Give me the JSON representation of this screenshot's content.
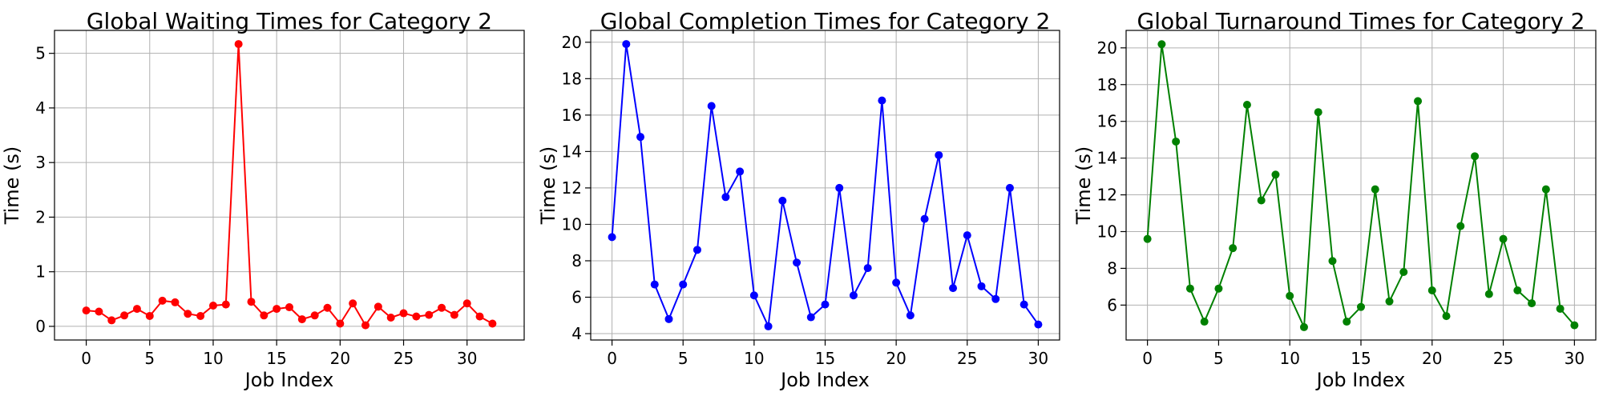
{
  "chart_data": [
    {
      "type": "line",
      "title": "Global Waiting Times for Category 2",
      "xlabel": "Job Index",
      "ylabel": "Time (s)",
      "color": "#ff0000",
      "grid": true,
      "xlim": [
        -2.5,
        34.5
      ],
      "ylim": [
        -0.25,
        5.42
      ],
      "xticks": [
        0,
        5,
        10,
        15,
        20,
        25,
        30
      ],
      "yticks": [
        0,
        1,
        2,
        3,
        4,
        5
      ],
      "series": [
        {
          "x": [
            0,
            1,
            2,
            3,
            4,
            5,
            6,
            7,
            8,
            9,
            10,
            11,
            12,
            13,
            14,
            15,
            16,
            17,
            18,
            19,
            20,
            21,
            22,
            23,
            24,
            25,
            26,
            27,
            28,
            29,
            30,
            31,
            32
          ],
          "y": [
            0.29,
            0.27,
            0.11,
            0.2,
            0.32,
            0.19,
            0.47,
            0.44,
            0.23,
            0.19,
            0.38,
            0.4,
            5.17,
            0.45,
            0.2,
            0.32,
            0.35,
            0.13,
            0.2,
            0.34,
            0.05,
            0.42,
            0.02,
            0.36,
            0.16,
            0.24,
            0.18,
            0.21,
            0.34,
            0.21,
            0.42,
            0.18,
            0.05
          ]
        }
      ]
    },
    {
      "type": "line",
      "title": "Global Completion Times for Category 2",
      "xlabel": "Job Index",
      "ylabel": "Time (s)",
      "color": "#0000ff",
      "grid": true,
      "xlim": [
        -1.5,
        31.5
      ],
      "ylim": [
        3.65,
        20.65
      ],
      "xticks": [
        0,
        5,
        10,
        15,
        20,
        25,
        30
      ],
      "yticks": [
        4,
        6,
        8,
        10,
        12,
        14,
        16,
        18,
        20
      ],
      "series": [
        {
          "x": [
            0,
            1,
            2,
            3,
            4,
            5,
            6,
            7,
            8,
            9,
            10,
            11,
            12,
            13,
            14,
            15,
            16,
            17,
            18,
            19,
            20,
            21,
            22,
            23,
            24,
            25,
            26,
            27,
            28,
            29,
            30
          ],
          "y": [
            9.3,
            19.9,
            14.8,
            6.7,
            4.8,
            6.7,
            8.6,
            16.5,
            11.5,
            12.9,
            6.1,
            4.4,
            11.3,
            7.9,
            4.9,
            5.6,
            12.0,
            6.1,
            7.6,
            16.8,
            6.8,
            5.0,
            10.3,
            13.8,
            6.5,
            9.4,
            6.6,
            5.9,
            12.0,
            5.6,
            4.5
          ]
        }
      ]
    },
    {
      "type": "line",
      "title": "Global Turnaround Times for Category 2",
      "xlabel": "Job Index",
      "ylabel": "Time (s)",
      "color": "#008000",
      "grid": true,
      "xlim": [
        -1.5,
        31.5
      ],
      "ylim": [
        4.1,
        20.95
      ],
      "xticks": [
        0,
        5,
        10,
        15,
        20,
        25,
        30
      ],
      "yticks": [
        6,
        8,
        10,
        12,
        14,
        16,
        18,
        20
      ],
      "series": [
        {
          "x": [
            0,
            1,
            2,
            3,
            4,
            5,
            6,
            7,
            8,
            9,
            10,
            11,
            12,
            13,
            14,
            15,
            16,
            17,
            18,
            19,
            20,
            21,
            22,
            23,
            24,
            25,
            26,
            27,
            28,
            29,
            30
          ],
          "y": [
            9.6,
            20.2,
            14.9,
            6.9,
            5.1,
            6.9,
            9.1,
            16.9,
            11.7,
            13.1,
            6.5,
            4.8,
            16.5,
            8.4,
            5.1,
            5.9,
            12.3,
            6.2,
            7.8,
            17.1,
            6.8,
            5.4,
            10.3,
            14.1,
            6.6,
            9.6,
            6.8,
            6.1,
            12.3,
            5.8,
            4.9
          ]
        }
      ]
    }
  ]
}
